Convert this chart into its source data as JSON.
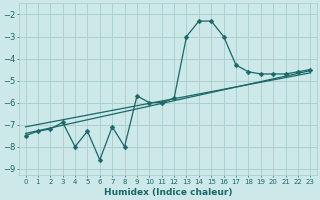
{
  "xlabel": "Humidex (Indice chaleur)",
  "xlim": [
    -0.5,
    23.5
  ],
  "ylim": [
    -9.3,
    -1.5
  ],
  "yticks": [
    -9,
    -8,
    -7,
    -6,
    -5,
    -4,
    -3,
    -2
  ],
  "xticks": [
    0,
    1,
    2,
    3,
    4,
    5,
    6,
    7,
    8,
    9,
    10,
    11,
    12,
    13,
    14,
    15,
    16,
    17,
    18,
    19,
    20,
    21,
    22,
    23
  ],
  "main_x": [
    0,
    1,
    2,
    3,
    4,
    5,
    6,
    7,
    8,
    9,
    10,
    11,
    12,
    13,
    14,
    15,
    16,
    17,
    18,
    19,
    20,
    21,
    22,
    23
  ],
  "main_y": [
    -7.5,
    -7.3,
    -7.2,
    -6.9,
    -8.0,
    -7.3,
    -8.6,
    -7.1,
    -8.0,
    -5.7,
    -6.0,
    -6.0,
    -5.8,
    -3.0,
    -2.3,
    -2.3,
    -3.0,
    -4.3,
    -4.6,
    -4.7,
    -4.7,
    -4.7,
    -4.6,
    -4.5
  ],
  "line1_x": [
    0,
    23
  ],
  "line1_y": [
    -7.4,
    -4.55
  ],
  "line2_x": [
    0,
    23
  ],
  "line2_y": [
    -7.1,
    -4.65
  ],
  "bg_color": "#cce8e8",
  "grid_color": "#aacccc",
  "line_color": "#1a6868",
  "marker_color": "#1a6868",
  "line_width": 0.9,
  "marker_size": 2.5,
  "tick_fontsize": 5.5,
  "xlabel_fontsize": 6.5
}
